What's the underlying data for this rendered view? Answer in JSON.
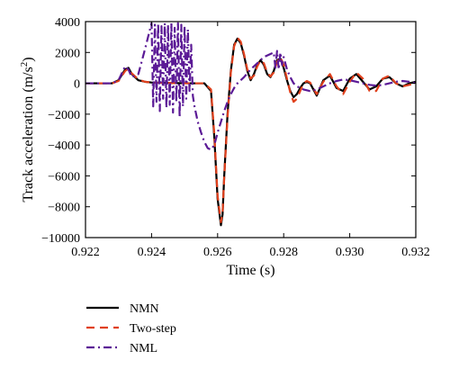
{
  "chart_data": {
    "type": "line",
    "xlabel": "Time (s)",
    "ylabel_main": "Track acceleration (m/s",
    "ylabel_sup": "2",
    "ylabel_end": ")",
    "xlim": [
      0.922,
      0.932
    ],
    "ylim": [
      -10000,
      4000
    ],
    "xticks": [
      0.922,
      0.924,
      0.926,
      0.928,
      0.93,
      0.932
    ],
    "xtick_labels": [
      "0.922",
      "0.924",
      "0.926",
      "0.928",
      "0.930",
      "0.932"
    ],
    "yticks": [
      -10000,
      -8000,
      -6000,
      -4000,
      -2000,
      0,
      2000,
      4000
    ],
    "ytick_labels": [
      "−10000",
      "−8000",
      "−6000",
      "−4000",
      "−2000",
      "0",
      "2000",
      "4000"
    ],
    "grid": false,
    "legend_position": "below",
    "series": [
      {
        "name": "NMN",
        "color": "#000000",
        "dash": "solid",
        "x": [
          0.922,
          0.9228,
          0.923,
          0.9232,
          0.9233,
          0.9234,
          0.9236,
          0.9238,
          0.924,
          0.9244,
          0.9248,
          0.9252,
          0.9256,
          0.9258,
          0.9259,
          0.926,
          0.9261,
          0.92615,
          0.9262,
          0.9263,
          0.9264,
          0.9265,
          0.9266,
          0.9267,
          0.9268,
          0.9269,
          0.927,
          0.9271,
          0.9272,
          0.9273,
          0.9274,
          0.9275,
          0.9276,
          0.9277,
          0.9278,
          0.9279,
          0.928,
          0.9281,
          0.9282,
          0.9283,
          0.9284,
          0.9285,
          0.9286,
          0.9287,
          0.9288,
          0.929,
          0.9292,
          0.9294,
          0.9296,
          0.9298,
          0.93,
          0.9302,
          0.9304,
          0.9306,
          0.9308,
          0.931,
          0.9312,
          0.9314,
          0.9316,
          0.9318,
          0.932
        ],
        "y": [
          0,
          0,
          200,
          900,
          1000,
          600,
          200,
          100,
          50,
          30,
          10,
          0,
          0,
          -500,
          -3500,
          -7500,
          -9200,
          -8500,
          -6000,
          -2000,
          800,
          2500,
          2900,
          2600,
          1800,
          800,
          200,
          600,
          1200,
          1500,
          1200,
          600,
          400,
          800,
          1500,
          1600,
          1000,
          200,
          -500,
          -900,
          -700,
          -300,
          0,
          100,
          0,
          -800,
          200,
          500,
          -300,
          -500,
          300,
          600,
          100,
          -400,
          -200,
          300,
          400,
          0,
          -200,
          0,
          100
        ]
      },
      {
        "name": "Two-step",
        "color": "#e0401c",
        "dash": "9,6",
        "x": [
          0.922,
          0.9228,
          0.923,
          0.9232,
          0.9233,
          0.9234,
          0.9236,
          0.9238,
          0.924,
          0.9244,
          0.9248,
          0.9252,
          0.9256,
          0.9258,
          0.9259,
          0.926,
          0.9261,
          0.92615,
          0.9262,
          0.9263,
          0.9264,
          0.9265,
          0.9266,
          0.9267,
          0.9268,
          0.9269,
          0.927,
          0.9271,
          0.9272,
          0.9273,
          0.9274,
          0.9275,
          0.9276,
          0.9277,
          0.9278,
          0.9279,
          0.928,
          0.9281,
          0.9282,
          0.9283,
          0.9284,
          0.9285,
          0.9286,
          0.9287,
          0.9288,
          0.929,
          0.9292,
          0.9294,
          0.9296,
          0.9298,
          0.93,
          0.9302,
          0.9304,
          0.9306,
          0.9308,
          0.931,
          0.9312,
          0.9314,
          0.9316,
          0.9318,
          0.932
        ],
        "y": [
          0,
          0,
          150,
          800,
          950,
          650,
          250,
          100,
          50,
          30,
          10,
          0,
          0,
          -400,
          -3300,
          -7300,
          -9000,
          -8400,
          -6100,
          -2200,
          700,
          2400,
          2950,
          2700,
          1900,
          900,
          300,
          500,
          1100,
          1500,
          1300,
          700,
          450,
          700,
          1400,
          1700,
          1200,
          300,
          -600,
          -1200,
          -1000,
          -500,
          0,
          150,
          50,
          -700,
          100,
          600,
          -200,
          -700,
          100,
          700,
          300,
          -500,
          -500,
          300,
          500,
          0,
          -200,
          -100,
          0
        ]
      },
      {
        "name": "NML",
        "color": "#5b1a96",
        "dash": "9,4,2,4",
        "x": [
          0.922,
          0.9228,
          0.923,
          0.9232,
          0.9233,
          0.9234,
          0.9236,
          0.9238,
          0.924,
          0.92405,
          0.9241,
          0.92415,
          0.9242,
          0.92425,
          0.9243,
          0.92435,
          0.9244,
          0.92445,
          0.9245,
          0.92455,
          0.9246,
          0.92465,
          0.9247,
          0.92475,
          0.9248,
          0.92485,
          0.9249,
          0.92495,
          0.925,
          0.92505,
          0.9251,
          0.92515,
          0.9252,
          0.92525,
          0.9253,
          0.9254,
          0.9255,
          0.9256,
          0.9257,
          0.9258,
          0.9259,
          0.926,
          0.9261,
          0.9262,
          0.9263,
          0.9264,
          0.9265,
          0.9266,
          0.9268,
          0.927,
          0.9272,
          0.9274,
          0.9276,
          0.9277,
          0.92775,
          0.9278,
          0.92785,
          0.9279,
          0.92795,
          0.928,
          0.9281,
          0.9282,
          0.9283,
          0.9284,
          0.9286,
          0.9288,
          0.929,
          0.9292,
          0.9294,
          0.9296,
          0.9298,
          0.93,
          0.9302,
          0.9304,
          0.9306,
          0.9308,
          0.931,
          0.9312,
          0.9314,
          0.9316,
          0.9318,
          0.932
        ],
        "y": [
          0,
          0,
          200,
          1100,
          900,
          400,
          600,
          2200,
          3900,
          -1500,
          3800,
          -1200,
          3900,
          -1800,
          3700,
          -1000,
          3900,
          -1600,
          3800,
          -1400,
          3900,
          -1900,
          3600,
          -1200,
          3900,
          -2200,
          3800,
          -1500,
          3700,
          -1000,
          3500,
          -500,
          2500,
          -800,
          -1500,
          -2500,
          -3200,
          -3800,
          -4200,
          -4300,
          -4000,
          -3200,
          -2500,
          -1800,
          -1200,
          -700,
          -300,
          0,
          400,
          900,
          1300,
          1700,
          1900,
          2000,
          1000,
          2100,
          900,
          2000,
          1200,
          1700,
          900,
          400,
          0,
          -200,
          -400,
          -500,
          -400,
          -200,
          0,
          150,
          250,
          200,
          100,
          0,
          -100,
          -150,
          -100,
          0,
          100,
          150,
          100,
          0
        ]
      }
    ]
  }
}
